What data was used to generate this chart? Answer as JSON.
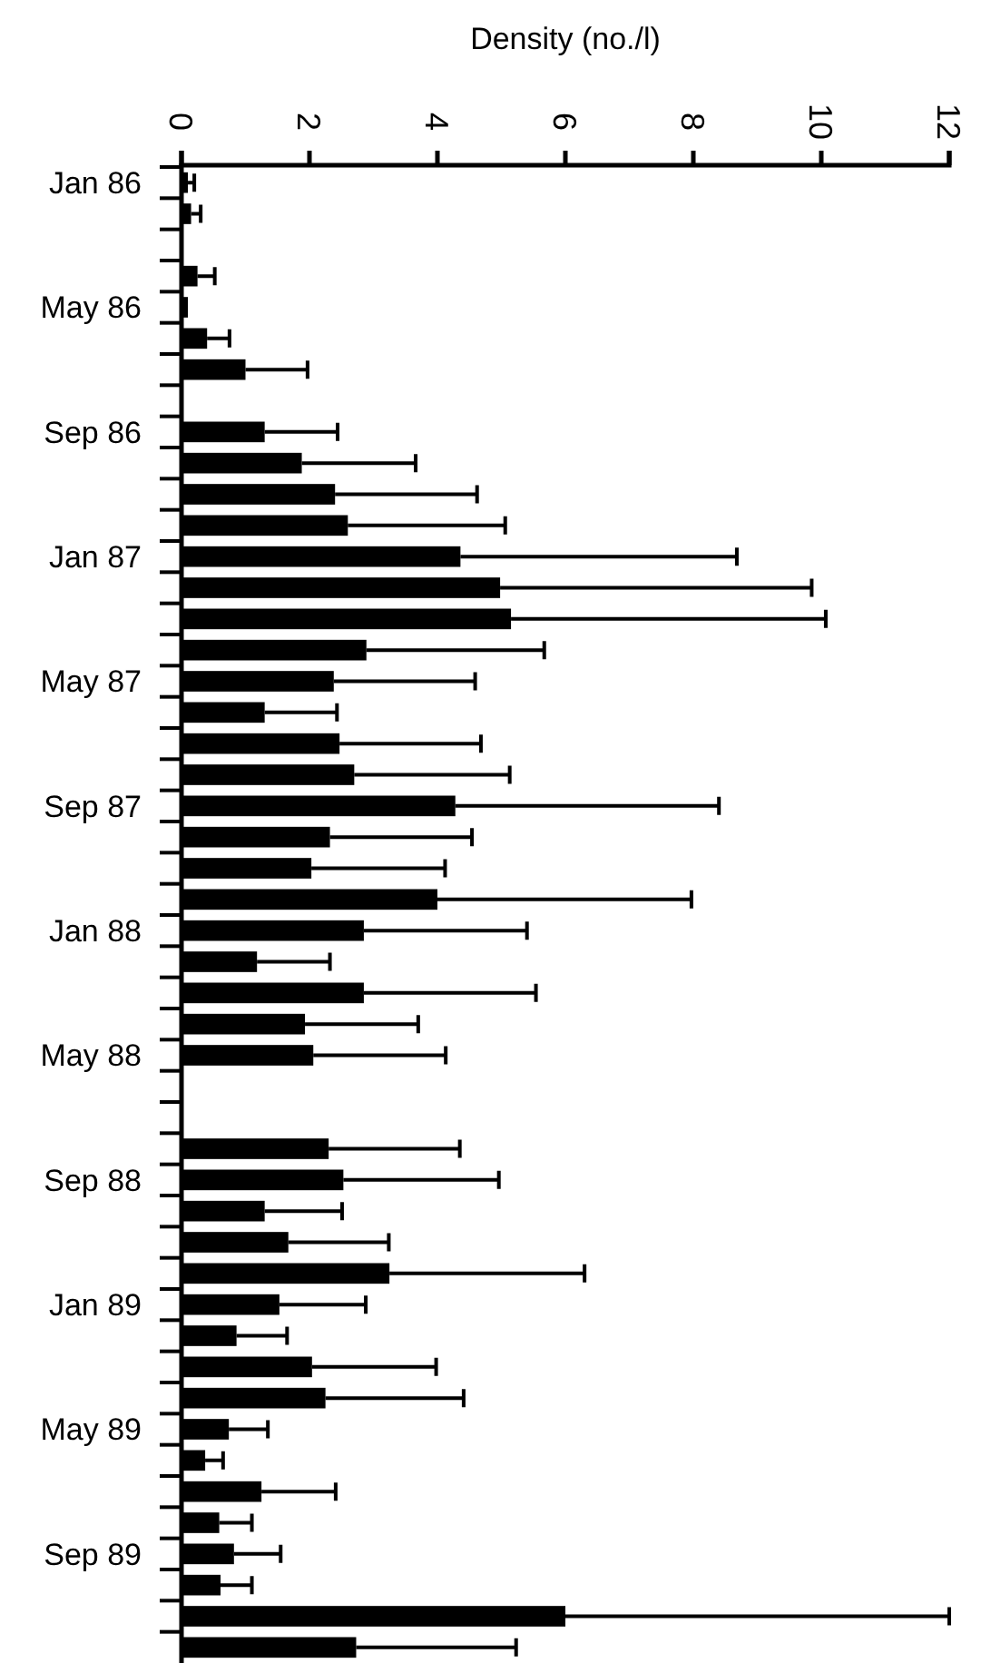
{
  "chart_data": {
    "type": "bar",
    "orientation": "horizontal",
    "xlabel": "Density (no./l)",
    "categories": [
      "Jan 86",
      null,
      null,
      null,
      "May 86",
      null,
      null,
      null,
      "Sep 86",
      null,
      null,
      null,
      "Jan 87",
      null,
      null,
      null,
      "May 87",
      null,
      null,
      null,
      "Sep 87",
      null,
      null,
      null,
      "Jan 88",
      null,
      null,
      null,
      "May 88",
      null,
      null,
      null,
      "Sep 88",
      null,
      null,
      null,
      "Jan 89",
      null,
      null,
      null,
      "May 89",
      null,
      null,
      null,
      "Sep 89",
      null,
      null,
      null
    ],
    "values": [
      0.1,
      0.15,
      null,
      0.25,
      0.1,
      0.4,
      1.0,
      null,
      1.3,
      1.88,
      2.4,
      2.6,
      4.36,
      4.98,
      5.15,
      2.89,
      2.38,
      1.3,
      2.47,
      2.7,
      4.28,
      2.32,
      2.03,
      4.0,
      2.85,
      1.18,
      2.85,
      1.93,
      2.06,
      null,
      null,
      2.3,
      2.53,
      1.3,
      1.67,
      3.25,
      1.53,
      0.86,
      2.04,
      2.25,
      0.74,
      0.37,
      1.25,
      0.59,
      0.82,
      0.61,
      6.0,
      2.73
    ],
    "errors": [
      [
        0.1,
        0.2
      ],
      [
        0.15,
        0.3
      ],
      null,
      [
        0.25,
        0.52
      ],
      null,
      [
        0.4,
        0.75
      ],
      [
        1.0,
        1.97
      ],
      null,
      [
        1.3,
        2.44
      ],
      [
        1.88,
        3.66
      ],
      [
        2.4,
        4.62
      ],
      [
        2.6,
        5.06
      ],
      [
        4.36,
        8.68
      ],
      [
        4.98,
        9.85
      ],
      [
        5.15,
        10.07
      ],
      [
        2.89,
        5.67
      ],
      [
        2.38,
        4.59
      ],
      [
        1.3,
        2.43
      ],
      [
        2.47,
        4.68
      ],
      [
        2.7,
        5.13
      ],
      [
        4.28,
        8.4
      ],
      [
        2.32,
        4.54
      ],
      [
        2.03,
        4.12
      ],
      [
        4.0,
        7.97
      ],
      [
        2.85,
        5.4
      ],
      [
        1.18,
        2.32
      ],
      [
        2.85,
        5.54
      ],
      [
        1.93,
        3.7
      ],
      [
        2.06,
        4.13
      ],
      null,
      null,
      [
        2.3,
        4.35
      ],
      [
        2.53,
        4.96
      ],
      [
        1.3,
        2.51
      ],
      [
        1.67,
        3.24
      ],
      [
        3.25,
        6.3
      ],
      [
        1.53,
        2.88
      ],
      [
        0.86,
        1.65
      ],
      [
        2.04,
        3.98
      ],
      [
        2.25,
        4.41
      ],
      [
        0.74,
        1.35
      ],
      [
        0.37,
        0.65
      ],
      [
        1.25,
        2.41
      ],
      [
        0.59,
        1.1
      ],
      [
        0.82,
        1.55
      ],
      [
        0.61,
        1.1
      ],
      [
        6.0,
        12.0
      ],
      [
        2.73,
        5.23
      ]
    ],
    "color": "#000000",
    "xlim": [
      0,
      12
    ],
    "xticks": [
      0,
      2,
      4,
      6,
      8,
      10,
      12
    ]
  }
}
